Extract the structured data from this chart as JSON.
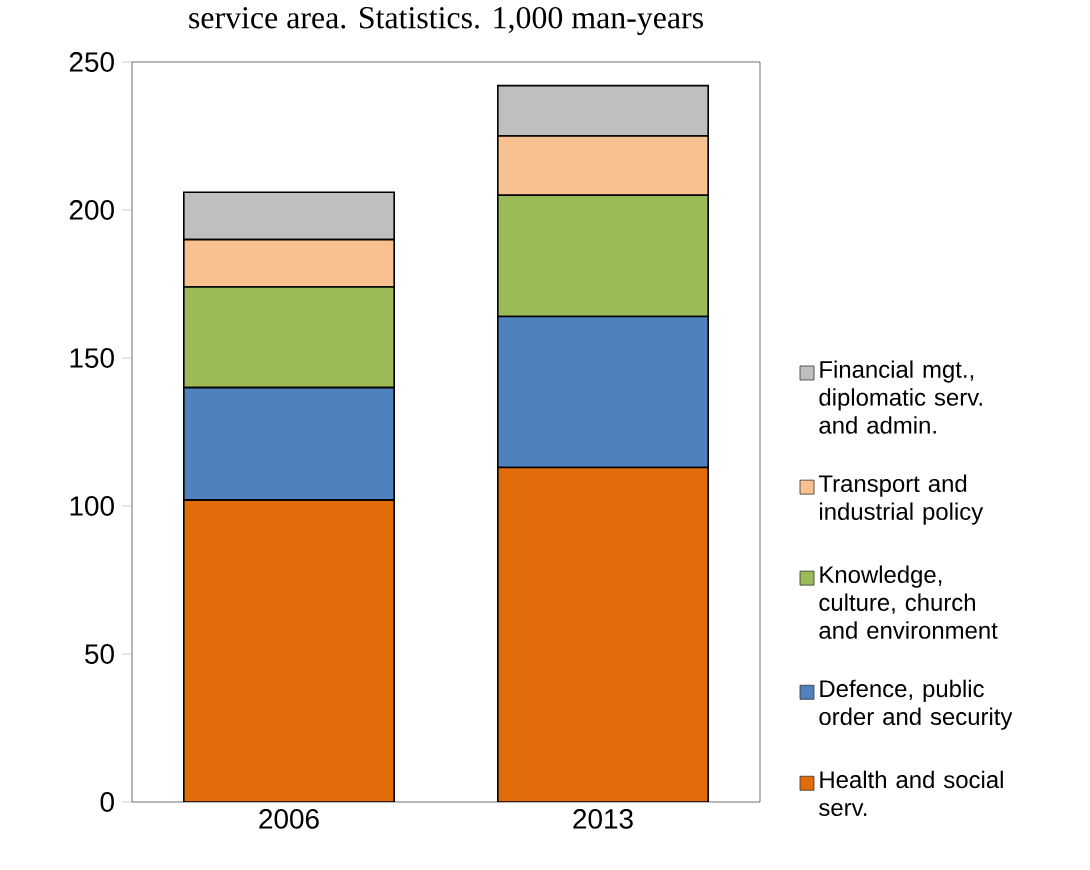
{
  "chart_data": {
    "type": "bar",
    "title": "service area. Statistics. 1,000 man-years",
    "categories": [
      "2006",
      "2013"
    ],
    "stacked": true,
    "series": [
      {
        "name": "Health and social serv.",
        "color": "#e36c0a",
        "values": [
          102,
          113
        ]
      },
      {
        "name": "Defence, public order and security",
        "color": "#4f81bd",
        "values": [
          38,
          51
        ]
      },
      {
        "name": "Knowledge, culture, church and environment",
        "color": "#9bbb59",
        "values": [
          34,
          41
        ]
      },
      {
        "name": "Transport and industrial policy",
        "color": "#f9c090",
        "values": [
          16,
          20
        ]
      },
      {
        "name": "Financial mgt., diplomatic serv. and admin.",
        "color": "#bfbfbf",
        "values": [
          16,
          17
        ]
      }
    ],
    "ylim": [
      0,
      250
    ],
    "yticks": [
      0,
      50,
      100,
      150,
      200,
      250
    ],
    "legend": "right",
    "grid": false
  }
}
